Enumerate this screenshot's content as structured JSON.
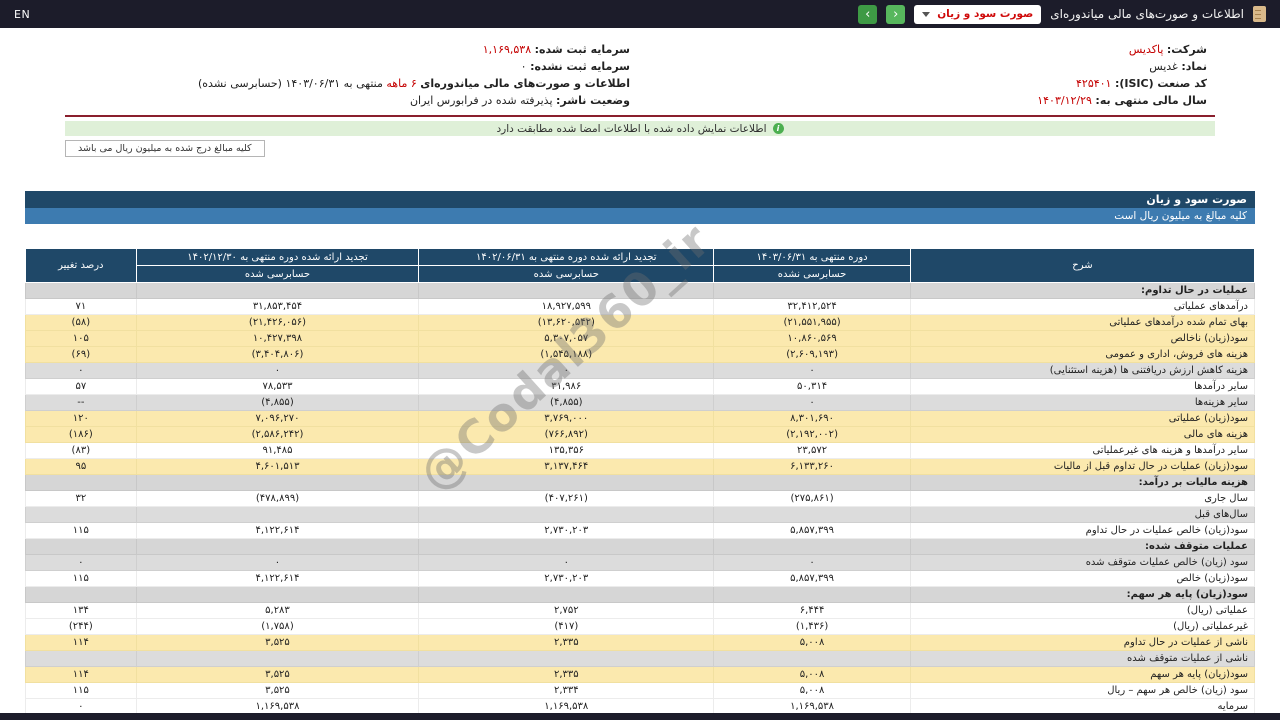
{
  "topbar": {
    "title": "اطلاعات و صورت‌های مالی میاندوره‌ای",
    "dropdown_value": "صورت سود و زیان",
    "nav_forward": "‹",
    "nav_back": "›",
    "lang": "EN"
  },
  "info_items": [
    {
      "label": "شرکت:",
      "value": "پاکدیس"
    },
    {
      "label": "سرمایه ثبت شده:",
      "value": "۱,۱۶۹,۵۳۸"
    },
    {
      "label": "نماد:",
      "value": "غدیس"
    },
    {
      "label": "سرمایه ثبت نشده:",
      "value": "۰"
    },
    {
      "label": "کد صنعت (ISIC):",
      "value": "۴۲۵۴۰۱"
    },
    {
      "label": "اطلاعات و صورت‌های مالی میاندوره‌ای",
      "red": "۶ ماهه",
      "value": "منتهی به ۱۴۰۳/۰۶/۳۱ (حسابرسی نشده)"
    },
    {
      "label": "سال مالی منتهی به:",
      "value": "۱۴۰۳/۱۲/۲۹"
    },
    {
      "label": "وضعیت ناشر:",
      "value": "پذیرفته شده در فرابورس ایران"
    }
  ],
  "notice": "اطلاعات نمایش داده شده با اطلاعات امضا شده مطابقت دارد",
  "unit_note": "کلیه مبالغ درج شده به میلیون ریال می باشد",
  "statement": {
    "title": "صورت سود و زیان",
    "unit": "کلیه مبالغ به میلیون ریال است"
  },
  "watermark": "@Codal360_ir",
  "table": {
    "columns": [
      {
        "label": "شرح",
        "sub": ""
      },
      {
        "label": "دوره منتهی به ۱۴۰۳/۰۶/۳۱",
        "sub": "حسابرسی نشده"
      },
      {
        "label": "تجدید ارائه شده دوره منتهی به ۱۴۰۲/۰۶/۳۱",
        "sub": "حسابرسی شده"
      },
      {
        "label": "تجدید ارائه شده دوره منتهی به ۱۴۰۲/۱۲/۳۰",
        "sub": "حسابرسی شده"
      },
      {
        "label": "درصد تغییر",
        "sub": ""
      }
    ],
    "rows": [
      {
        "label": "عملیات در حال تداوم:",
        "style": "section",
        "cells": [
          "",
          "",
          "",
          ""
        ]
      },
      {
        "label": "درآمدهای عملیاتی",
        "style": "white",
        "cells": [
          "۳۲,۴۱۲,۵۲۴",
          "۱۸,۹۲۷,۵۹۹",
          "۳۱,۸۵۳,۴۵۴",
          "۷۱"
        ]
      },
      {
        "label": "بهای تمام شده درآمدهای عملیاتی",
        "style": "yellow",
        "cells": [
          "(۲۱,۵۵۱,۹۵۵)",
          "(۱۳,۶۲۰,۵۴۲)",
          "(۲۱,۴۲۶,۰۵۶)",
          "(۵۸)"
        ]
      },
      {
        "label": "سود(زیان) ناخالص",
        "style": "yellow",
        "cells": [
          "۱۰,۸۶۰,۵۶۹",
          "۵,۳۰۷,۰۵۷",
          "۱۰,۴۲۷,۳۹۸",
          "۱۰۵"
        ]
      },
      {
        "label": "هزینه های فروش، اداری و عمومی",
        "style": "yellow",
        "cells": [
          "(۲,۶۰۹,۱۹۳)",
          "(۱,۵۴۵,۱۸۸)",
          "(۳,۴۰۴,۸۰۶)",
          "(۶۹)"
        ]
      },
      {
        "label": "هزینه کاهش ارزش دریافتنی ها (هزینه استثنایی)",
        "style": "gray",
        "cells": [
          "۰",
          "۰",
          "۰",
          "۰"
        ]
      },
      {
        "label": "سایر درآمدها",
        "style": "white",
        "cells": [
          "۵۰,۳۱۴",
          "۳۱,۹۸۶",
          "۷۸,۵۳۳",
          "۵۷"
        ]
      },
      {
        "label": "سایر هزینه‌ها",
        "style": "gray",
        "cells": [
          "۰",
          "(۴,۸۵۵)",
          "(۴,۸۵۵)",
          "--"
        ]
      },
      {
        "label": "سود(زیان) عملیاتی",
        "style": "yellow",
        "cells": [
          "۸,۳۰۱,۶۹۰",
          "۳,۷۶۹,۰۰۰",
          "۷,۰۹۶,۲۷۰",
          "۱۲۰"
        ]
      },
      {
        "label": "هزینه های مالی",
        "style": "yellow",
        "cells": [
          "(۲,۱۹۲,۰۰۲)",
          "(۷۶۶,۸۹۲)",
          "(۲,۵۸۶,۲۴۲)",
          "(۱۸۶)"
        ]
      },
      {
        "label": "سایر درآمدها و هزینه های غیرعملیاتی",
        "style": "white",
        "cells": [
          "۲۳,۵۷۲",
          "۱۳۵,۳۵۶",
          "۹۱,۴۸۵",
          "(۸۳)"
        ]
      },
      {
        "label": "سود(زیان) عملیات در حال تداوم قبل از مالیات",
        "style": "yellow",
        "cells": [
          "۶,۱۳۳,۲۶۰",
          "۳,۱۳۷,۴۶۴",
          "۴,۶۰۱,۵۱۳",
          "۹۵"
        ]
      },
      {
        "label": "هزینه مالیات بر درآمد:",
        "style": "section",
        "cells": [
          "",
          "",
          "",
          ""
        ]
      },
      {
        "label": "سال جاری",
        "style": "white",
        "cells": [
          "(۲۷۵,۸۶۱)",
          "(۴۰۷,۲۶۱)",
          "(۴۷۸,۸۹۹)",
          "۳۲"
        ]
      },
      {
        "label": "سال‌های قبل",
        "style": "gray",
        "cells": [
          "",
          "",
          "",
          ""
        ]
      },
      {
        "label": "سود(زیان) خالص عملیات در حال تداوم",
        "style": "white",
        "cells": [
          "۵,۸۵۷,۳۹۹",
          "۲,۷۳۰,۲۰۳",
          "۴,۱۲۲,۶۱۴",
          "۱۱۵"
        ]
      },
      {
        "label": "عملیات متوقف شده:",
        "style": "section",
        "cells": [
          "",
          "",
          "",
          ""
        ]
      },
      {
        "label": "سود (زیان) خالص عملیات متوقف شده",
        "style": "gray",
        "cells": [
          "۰",
          "۰",
          "۰",
          "۰"
        ]
      },
      {
        "label": "سود(زیان) خالص",
        "style": "white",
        "cells": [
          "۵,۸۵۷,۳۹۹",
          "۲,۷۳۰,۲۰۳",
          "۴,۱۲۲,۶۱۴",
          "۱۱۵"
        ]
      },
      {
        "label": "سود(زیان) پایه هر سهم:",
        "style": "section",
        "cells": [
          "",
          "",
          "",
          ""
        ]
      },
      {
        "label": "عملیاتی (ریال)",
        "style": "white",
        "cells": [
          "۶,۴۴۴",
          "۲,۷۵۲",
          "۵,۲۸۳",
          "۱۳۴"
        ]
      },
      {
        "label": "غیرعملیاتی (ریال)",
        "style": "white",
        "cells": [
          "(۱,۴۳۶)",
          "(۴۱۷)",
          "(۱,۷۵۸)",
          "(۲۴۴)"
        ]
      },
      {
        "label": "ناشی از عملیات در حال تداوم",
        "style": "yellow",
        "cells": [
          "۵,۰۰۸",
          "۲,۳۳۵",
          "۳,۵۲۵",
          "۱۱۴"
        ]
      },
      {
        "label": "ناشی از عملیات متوقف شده",
        "style": "gray",
        "cells": [
          "",
          "",
          "",
          ""
        ]
      },
      {
        "label": "سود(زیان) پایه هر سهم",
        "style": "yellow",
        "cells": [
          "۵,۰۰۸",
          "۲,۳۳۵",
          "۳,۵۲۵",
          "۱۱۴"
        ]
      },
      {
        "label": "سود (زیان) خالص هر سهم – ریال",
        "style": "white",
        "cells": [
          "۵,۰۰۸",
          "۲,۳۳۴",
          "۳,۵۲۵",
          "۱۱۵"
        ]
      },
      {
        "label": "سرمایه",
        "style": "white",
        "cells": [
          "۱,۱۶۹,۵۳۸",
          "۱,۱۶۹,۵۳۸",
          "۱,۱۶۹,۵۳۸",
          "۰"
        ]
      }
    ]
  }
}
